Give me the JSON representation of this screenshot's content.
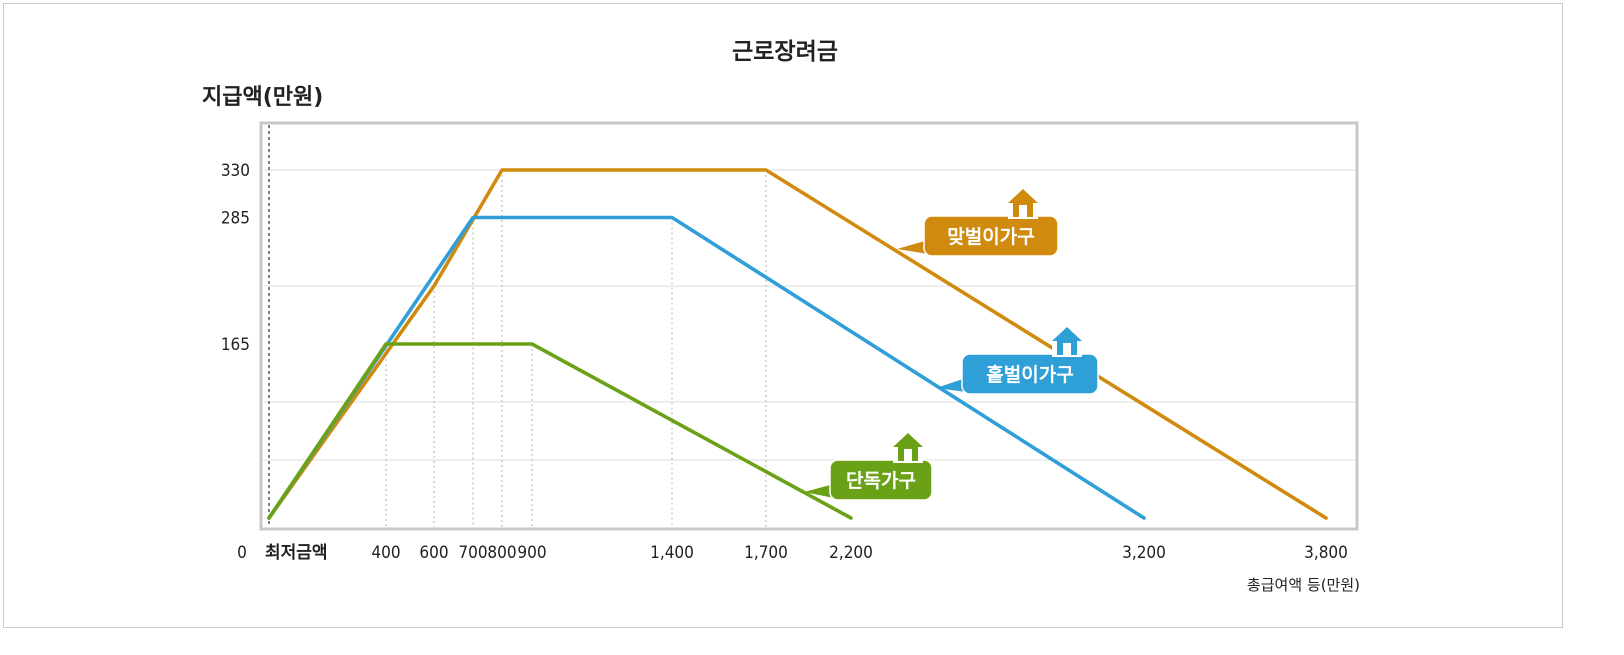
{
  "chart_data": {
    "type": "line",
    "title": "근로장려금",
    "ylabel": "지급액(만원)",
    "xlabel": "총급여액 등(만원)",
    "x_ticks": [
      {
        "value": 0,
        "label": "0"
      },
      {
        "value": 100,
        "label": "최저금액"
      },
      {
        "value": 400,
        "label": "400"
      },
      {
        "value": 600,
        "label": "600"
      },
      {
        "value": 700,
        "label": "700"
      },
      {
        "value": 800,
        "label": "800"
      },
      {
        "value": 900,
        "label": "900"
      },
      {
        "value": 1400,
        "label": "1,400"
      },
      {
        "value": 1700,
        "label": "1,700"
      },
      {
        "value": 2200,
        "label": "2,200"
      },
      {
        "value": 3200,
        "label": "3,200"
      },
      {
        "value": 3800,
        "label": "3,800"
      }
    ],
    "y_ticks": [
      {
        "value": 165,
        "label": "165"
      },
      {
        "value": 285,
        "label": "285"
      },
      {
        "value": 330,
        "label": "330"
      }
    ],
    "gridlines_y": [
      55,
      110,
      220,
      330
    ],
    "ylim": [
      0,
      370
    ],
    "series": [
      {
        "name": "맞벌이가구",
        "color": "#d08a0e",
        "points": [
          [
            100,
            0
          ],
          [
            600,
            220
          ],
          [
            800,
            330
          ],
          [
            1700,
            330
          ],
          [
            3800,
            0
          ]
        ]
      },
      {
        "name": "홑벌이가구",
        "color": "#2f9fd8",
        "points": [
          [
            100,
            0
          ],
          [
            700,
            285
          ],
          [
            1400,
            285
          ],
          [
            3200,
            0
          ]
        ]
      },
      {
        "name": "단독가구",
        "color": "#6aa116",
        "points": [
          [
            100,
            0
          ],
          [
            400,
            165
          ],
          [
            900,
            165
          ],
          [
            2200,
            0
          ]
        ]
      }
    ]
  }
}
